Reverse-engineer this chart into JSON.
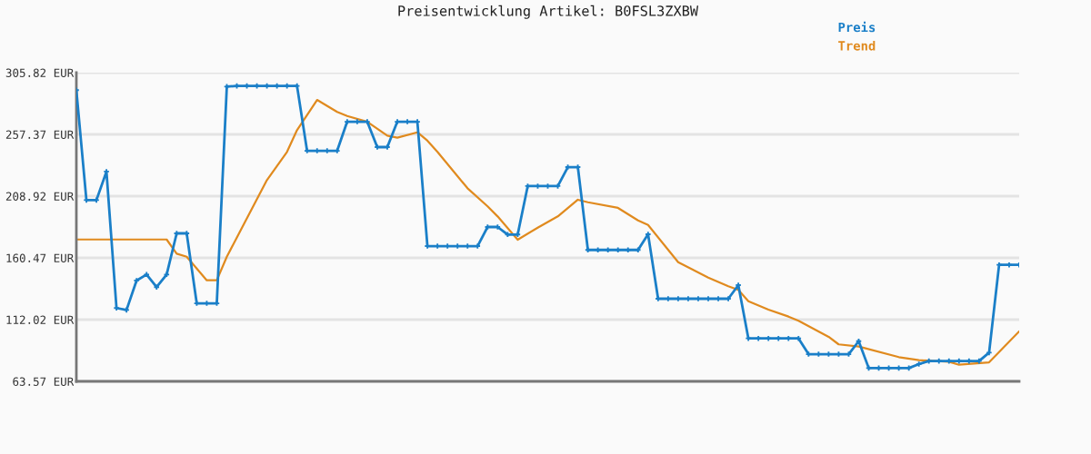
{
  "chart_data": {
    "type": "line",
    "title": "Preisentwicklung Artikel: B0FSL3ZXBW",
    "categories": [
      null,
      null,
      null,
      null,
      null,
      null,
      null,
      null,
      null,
      null,
      null,
      null,
      null,
      null,
      null,
      null,
      null,
      null,
      null,
      null,
      null,
      null,
      null,
      null,
      null,
      null,
      null,
      null,
      null,
      null,
      null,
      null,
      null,
      null,
      null,
      null,
      null,
      null,
      null,
      null,
      null,
      null,
      null,
      null,
      null,
      null,
      null,
      null,
      null,
      null,
      null,
      null,
      null,
      null,
      null,
      null,
      null,
      null,
      null,
      null,
      null,
      null,
      null,
      null,
      null,
      null,
      null,
      null,
      null,
      null,
      null,
      null,
      null,
      null,
      null,
      null,
      null,
      null,
      null,
      null,
      null,
      null,
      null,
      null,
      null,
      null,
      null,
      null,
      null,
      null,
      null,
      null,
      null,
      null,
      null
    ],
    "series": [
      {
        "name": "Preis",
        "color": "#1a7fc8",
        "marker": "cross",
        "values": [
          292.1,
          205.8,
          205.8,
          228.2,
          121.1,
          119.6,
          142.7,
          147.4,
          137.5,
          147.4,
          179.7,
          179.7,
          124.8,
          124.8,
          124.8,
          294.9,
          295.4,
          295.4,
          295.4,
          295.4,
          295.4,
          295.4,
          295.4,
          244.5,
          244.5,
          244.5,
          244.5,
          267.3,
          267.3,
          267.3,
          247.4,
          247.4,
          267.3,
          267.3,
          267.3,
          169.7,
          169.7,
          169.7,
          169.7,
          169.7,
          169.7,
          184.7,
          184.7,
          178.8,
          178.8,
          216.8,
          216.8,
          216.8,
          216.8,
          231.7,
          231.7,
          166.7,
          166.7,
          166.7,
          166.7,
          166.7,
          166.7,
          179.0,
          128.4,
          128.4,
          128.4,
          128.4,
          128.4,
          128.4,
          128.4,
          128.4,
          139.1,
          97.3,
          97.3,
          97.3,
          97.3,
          97.3,
          97.3,
          84.9,
          84.9,
          84.9,
          84.9,
          84.9,
          95.1,
          74.0,
          74.0,
          74.0,
          74.0,
          74.0,
          77.1,
          79.5,
          79.5,
          79.5,
          79.5,
          79.5,
          79.5,
          86.1,
          155.0,
          155.0,
          155.0
        ]
      },
      {
        "name": "Trend",
        "color": "#e08a1e",
        "marker": "none",
        "values": [
          174.9,
          null,
          null,
          null,
          null,
          null,
          null,
          null,
          null,
          174.9,
          163.8,
          161.4,
          null,
          142.9,
          142.9,
          161.4,
          null,
          null,
          null,
          221.5,
          null,
          243.6,
          260.7,
          null,
          284.4,
          null,
          275.0,
          271.8,
          null,
          267.3,
          null,
          256.4,
          254.8,
          null,
          259.0,
          252.4,
          243.6,
          null,
          null,
          215.1,
          null,
          200.9,
          193.0,
          null,
          174.7,
          null,
          184.2,
          null,
          193.0,
          null,
          206.1,
          204.1,
          null,
          null,
          199.7,
          null,
          189.9,
          186.3,
          null,
          null,
          157.1,
          null,
          null,
          145.0,
          null,
          138.2,
          135.3,
          126.5,
          null,
          119.9,
          null,
          114.4,
          111.1,
          null,
          null,
          98.5,
          92.6,
          null,
          90.9,
          null,
          null,
          null,
          82.6,
          null,
          80.2,
          null,
          null,
          79.0,
          76.6,
          null,
          null,
          78.5,
          null,
          null,
          102.8
        ]
      }
    ],
    "ylim": [
      63.57,
      305.82
    ],
    "yticks": [
      {
        "value": 63.57,
        "label": "63.57 EUR"
      },
      {
        "value": 112.02,
        "label": "112.02 EUR"
      },
      {
        "value": 160.47,
        "label": "160.47 EUR"
      },
      {
        "value": 208.92,
        "label": "208.92 EUR"
      },
      {
        "value": 257.37,
        "label": "257.37 EUR"
      },
      {
        "value": 305.82,
        "label": "305.82 EUR"
      }
    ],
    "grid": "y",
    "legend": "top right",
    "tick_labels": "y",
    "line_style": "solid"
  }
}
